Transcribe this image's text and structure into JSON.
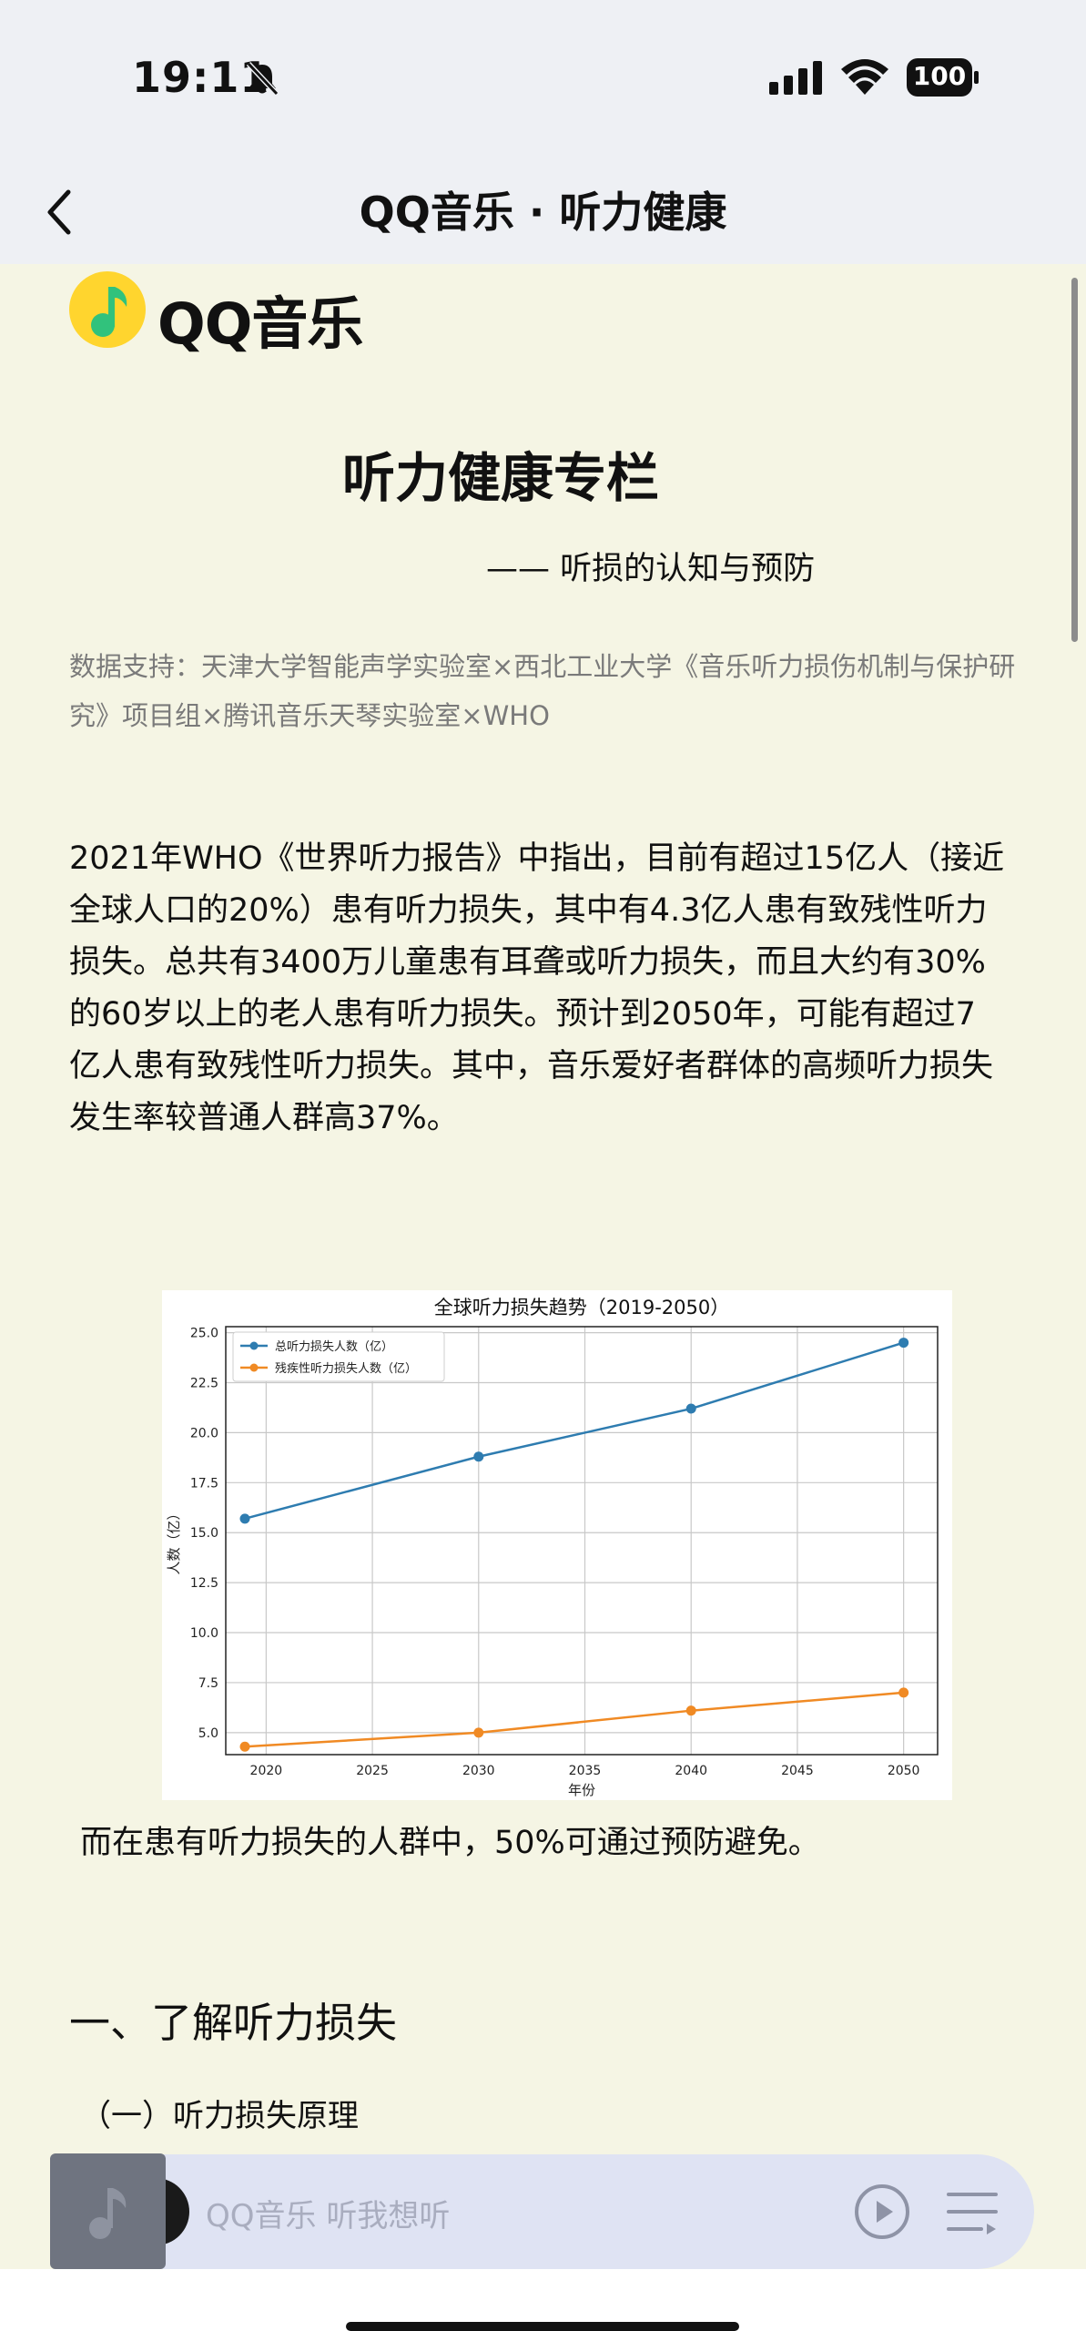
{
  "status_bar": {
    "time": "19:11",
    "battery": "100"
  },
  "nav": {
    "title": "QQ音乐 · 听力健康"
  },
  "logo": {
    "text": "QQ音乐"
  },
  "article": {
    "title": "听力健康专栏",
    "subtitle": "—— 听损的认知与预防",
    "data_support": "数据支持：天津大学智能声学实验室×西北工业大学《音乐听力损伤机制与保护研究》项目组×腾讯音乐天琴实验室×WHO",
    "intro_lines": [
      "2021年WHO《世界听力报告》中指出，目前有超过15亿人（接近",
      "全球人口的20%）患有听力损失，其中有4.3亿人患有致残性听力",
      "损失。总共有3400万儿童患有耳聋或听力损失，而且大约有30%",
      "的60岁以上的老人患有听力损失。预计到2050年，可能有超过7",
      "亿人患有致残性听力损失。其中，音乐爱好者群体的高频听力损失",
      "发生率较普通人群高37%。"
    ],
    "after_chart": "而在患有听力损失的人群中，50%可通过预防避免。",
    "section_heading": "一、了解听力损失",
    "subsection_heading": "（一）听力损失原理"
  },
  "chart_data": {
    "type": "line",
    "title": "全球听力损失趋势（2019-2050）",
    "xlabel": "年份",
    "ylabel": "人数（亿）",
    "x": [
      2019,
      2030,
      2040,
      2050
    ],
    "series": [
      {
        "name": "总听力损失人数（亿）",
        "color": "#2e7cb0",
        "values": [
          15.7,
          18.8,
          21.2,
          24.5
        ]
      },
      {
        "name": "残疾性听力损失人数（亿）",
        "color": "#f08a24",
        "values": [
          4.3,
          5.0,
          6.1,
          7.0
        ]
      }
    ],
    "xlim": [
      2018.1,
      2051.6
    ],
    "ylim": [
      3.9,
      25.3
    ],
    "xticks": [
      2020,
      2025,
      2030,
      2035,
      2040,
      2045,
      2050
    ],
    "yticks": [
      5.0,
      7.5,
      10.0,
      12.5,
      15.0,
      17.5,
      20.0,
      22.5,
      25.0
    ],
    "grid": true,
    "legend": "top-left"
  },
  "player": {
    "hint": "QQ音乐 听我想听"
  },
  "colors": {
    "page_bg": "#f5f5e4",
    "bar_bg": "#eef0f4",
    "player_bg": "#dfe3f3"
  }
}
